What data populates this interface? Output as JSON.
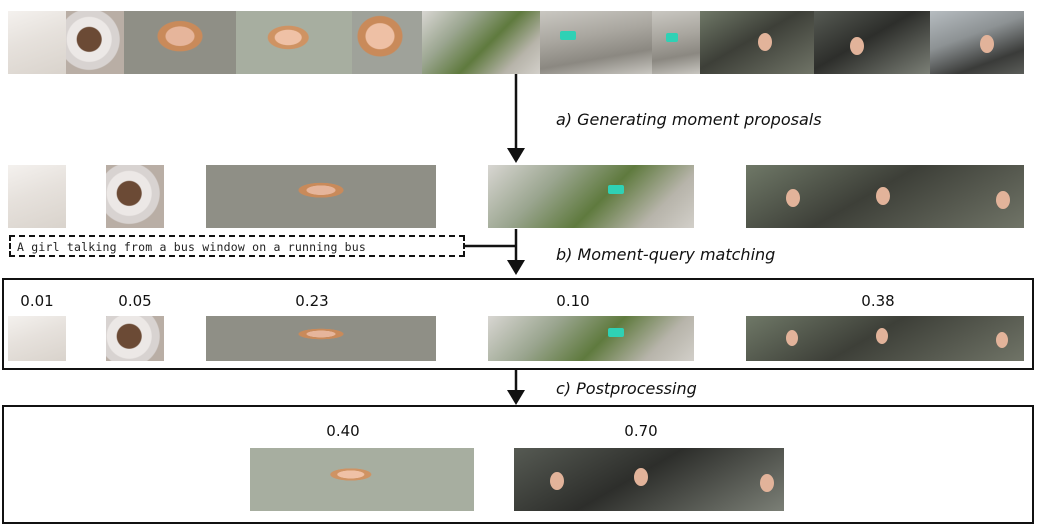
{
  "steps": {
    "a": "a) Generating moment proposals",
    "b": "b) Moment-query matching",
    "c": "c) Postprocessing"
  },
  "query": "A girl talking from a bus window on a running bus",
  "proposal_scores": [
    "0.01",
    "0.05",
    "0.23",
    "0.10",
    "0.38"
  ],
  "final_scores": [
    "0.40",
    "0.70"
  ],
  "colors": {
    "line": "#111111",
    "cart_marker": "#2fd1b5"
  }
}
